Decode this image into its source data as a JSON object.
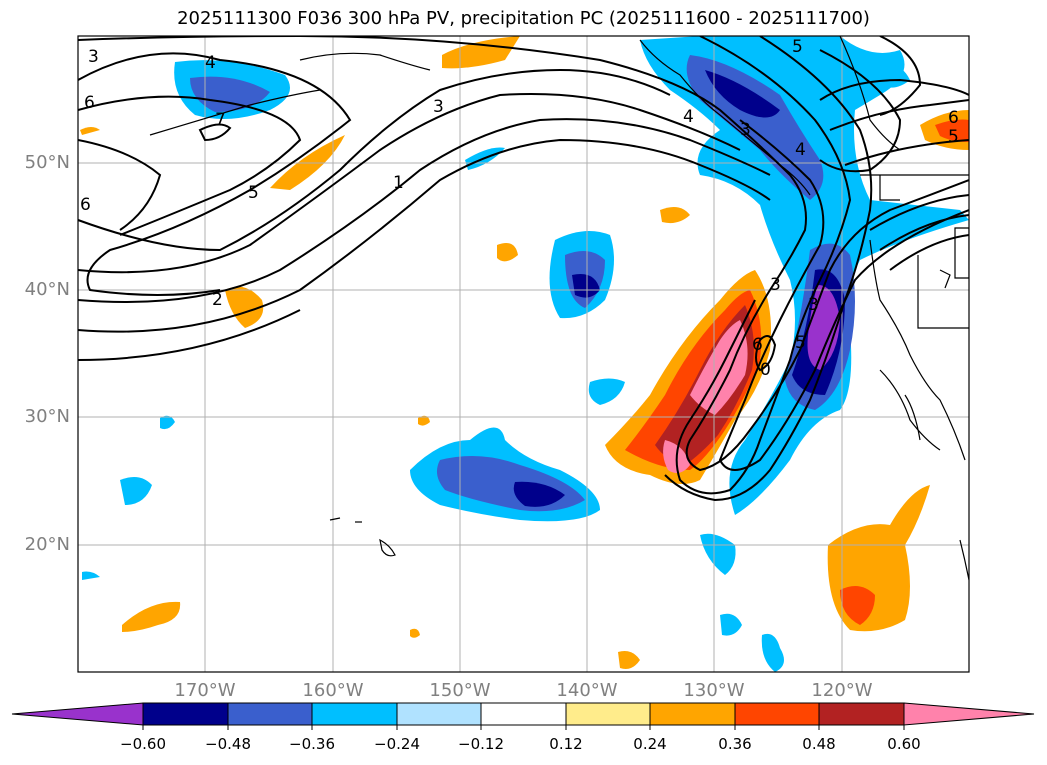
{
  "title": "2025111300 F036 300 hPa PV, precipitation PC (2025111600 - 2025111700)",
  "lat_labels": [
    "50°N",
    "40°N",
    "30°N",
    "20°N"
  ],
  "lon_labels": [
    "170°W",
    "160°W",
    "150°W",
    "140°W",
    "130°W",
    "120°W"
  ],
  "colorbar": {
    "ticks": [
      "−0.60",
      "−0.48",
      "−0.36",
      "−0.24",
      "−0.12",
      "0.12",
      "0.24",
      "0.36",
      "0.48",
      "0.60"
    ],
    "colors": [
      "#9932cc",
      "#00008b",
      "#3a5fcd",
      "#00bfff",
      "#b0e2ff",
      "#ffffff",
      "#ffec8b",
      "#ffa500",
      "#ff4500",
      "#b22222",
      "#ff82ab"
    ]
  },
  "pv_contour_labels": [
    "3",
    "4",
    "6",
    "7",
    "5",
    "2",
    "1",
    "3",
    "5",
    "4",
    "3",
    "0",
    "6",
    "5",
    "4",
    "3",
    "6",
    "5",
    "6",
    "3"
  ],
  "land_color": "#000000"
}
